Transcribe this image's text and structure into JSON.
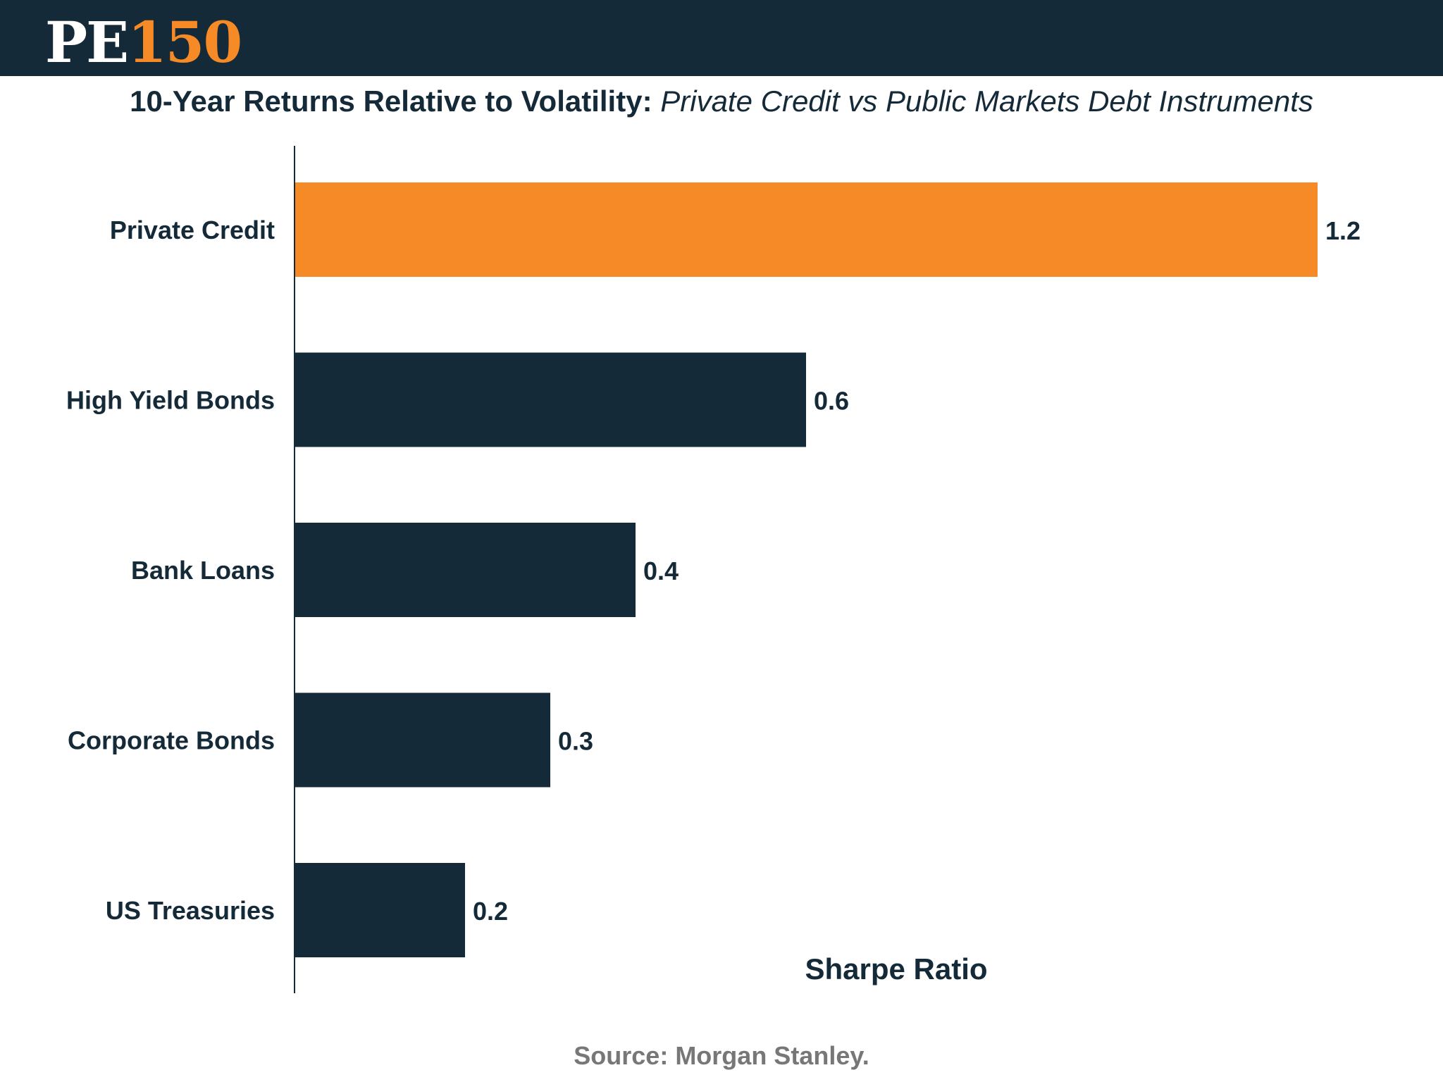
{
  "header": {
    "logo_pe": "PE",
    "logo_num": "150"
  },
  "colors": {
    "header_bg": "#142a38",
    "highlight": "#f68a26",
    "bar": "#142a38",
    "text": "#142a38",
    "source_text": "#777777"
  },
  "chart_data": {
    "type": "bar",
    "orientation": "horizontal",
    "title_bold": "10-Year Returns Relative to Volatility:",
    "title_italic": "Private Credit vs Public Markets Debt Instruments",
    "categories": [
      "Private Credit",
      "High Yield Bonds",
      "Bank Loans",
      "Corporate Bonds",
      "US Treasuries"
    ],
    "values": [
      1.2,
      0.6,
      0.4,
      0.3,
      0.2
    ],
    "value_labels": [
      "1.2",
      "0.6",
      "0.4",
      "0.3",
      "0.2"
    ],
    "highlight_index": 0,
    "xlabel": "Sharpe Ratio",
    "ylabel": "",
    "xlim": [
      0,
      1.2
    ],
    "grid": false,
    "legend": "none"
  },
  "source": "Source: Morgan Stanley."
}
